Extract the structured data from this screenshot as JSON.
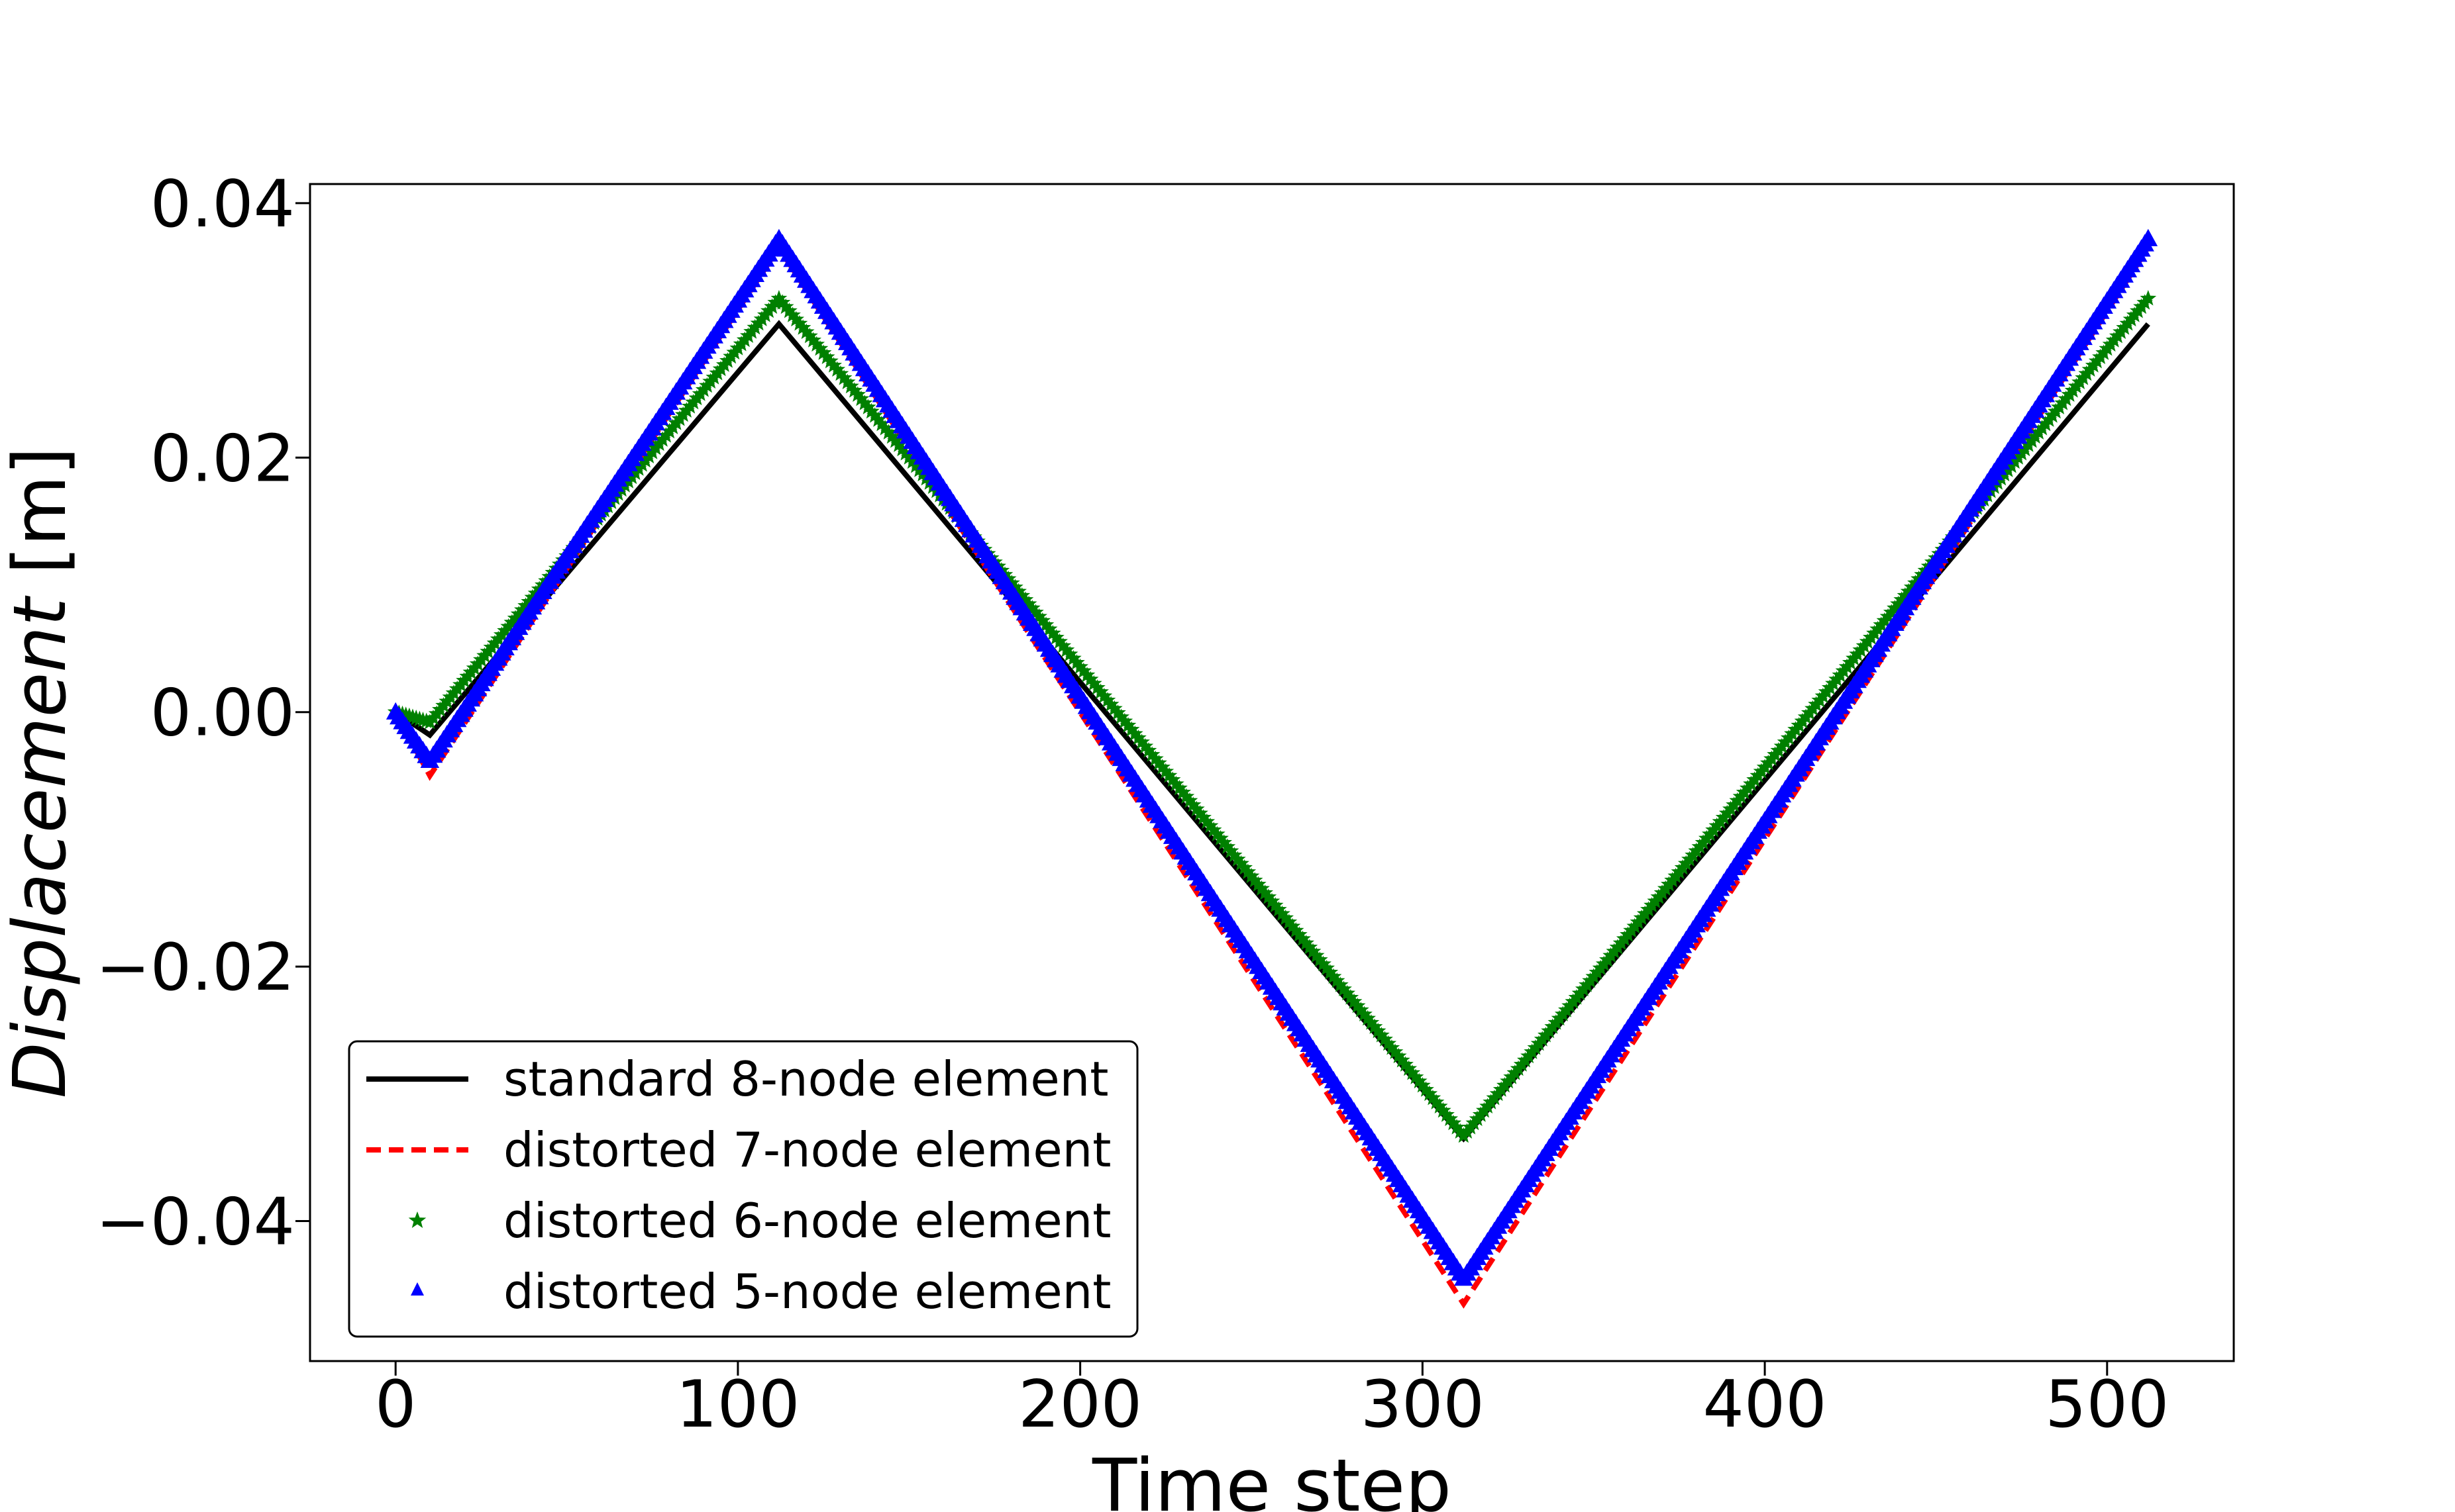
{
  "chart_data": {
    "type": "line",
    "xlabel": "Time step",
    "ylabel": "Displacement [m]",
    "xlim": [
      -25,
      537
    ],
    "ylim": [
      -0.051,
      0.0415
    ],
    "x_ticks": [
      0,
      100,
      200,
      300,
      400,
      500
    ],
    "x_tick_labels": [
      "0",
      "100",
      "200",
      "300",
      "400",
      "500"
    ],
    "y_ticks": [
      -0.04,
      -0.02,
      0.0,
      0.02,
      0.04
    ],
    "y_tick_labels": [
      "−0.04",
      "−0.02",
      "0.00",
      "0.02",
      "0.04"
    ],
    "grid": false,
    "legend_position": "lower-left",
    "series": [
      {
        "name": "standard 8-node element",
        "color": "#000000",
        "style": "solid",
        "x": [
          0,
          10,
          112,
          312,
          512
        ],
        "y": [
          0.0,
          -0.0018,
          0.0305,
          -0.0335,
          0.0305
        ]
      },
      {
        "name": "distorted 7-node element",
        "color": "#ff0000",
        "style": "dashed",
        "x": [
          0,
          10,
          112,
          312,
          512
        ],
        "y": [
          0.0,
          -0.005,
          0.0365,
          -0.0465,
          0.0365
        ]
      },
      {
        "name": "distorted 6-node element",
        "color": "#008000",
        "style": "star-markers",
        "x": [
          0,
          10,
          112,
          312,
          512
        ],
        "y": [
          0.0,
          -0.0008,
          0.0325,
          -0.0333,
          0.0325
        ]
      },
      {
        "name": "distorted 5-node element",
        "color": "#0000ff",
        "style": "triangle-markers",
        "x": [
          0,
          10,
          112,
          312,
          512
        ],
        "y": [
          0.0,
          -0.0038,
          0.0372,
          -0.0445,
          0.0372
        ]
      }
    ]
  }
}
